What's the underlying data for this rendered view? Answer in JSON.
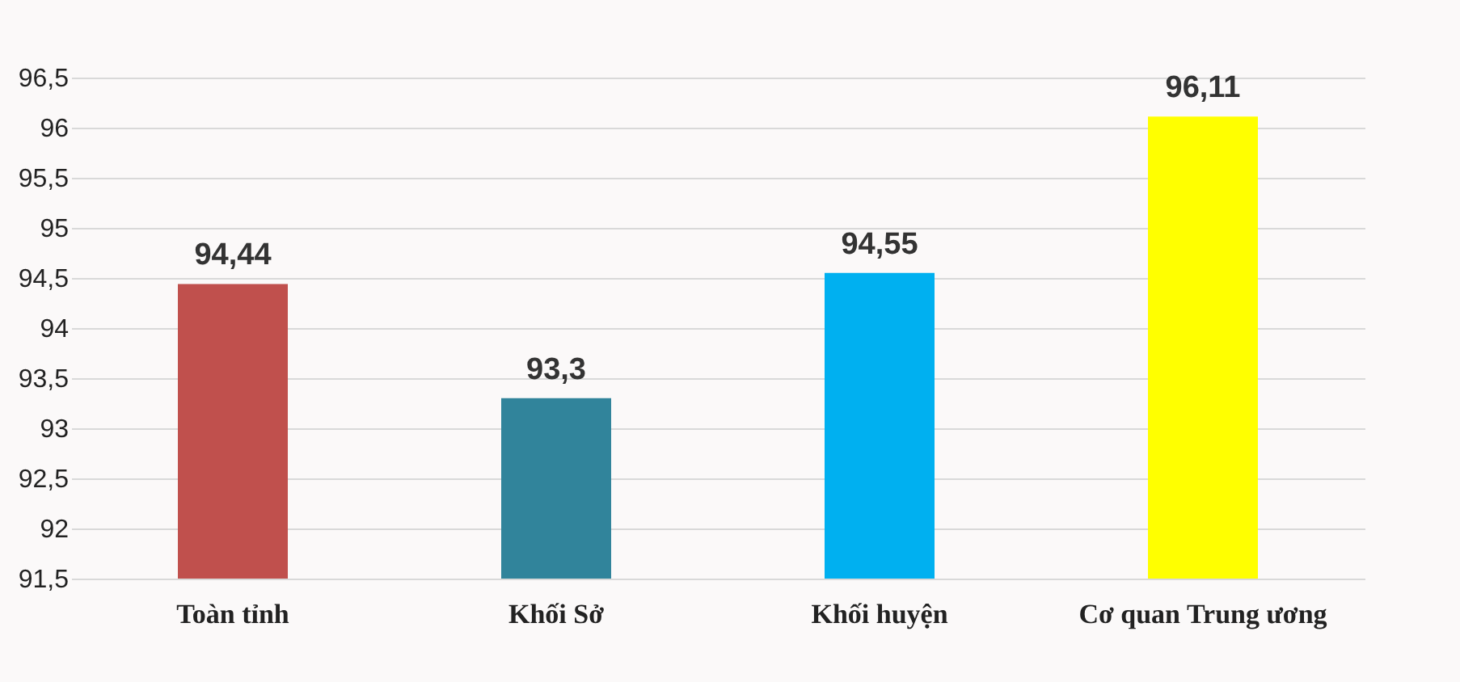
{
  "chart_data": {
    "type": "bar",
    "categories": [
      "Toàn tỉnh",
      "Khối Sở",
      "Khối huyện",
      "Cơ quan Trung ương"
    ],
    "values": [
      94.44,
      93.3,
      94.55,
      96.11
    ],
    "colors": [
      "#c0504d",
      "#31849b",
      "#00b0f0",
      "#ffff00"
    ],
    "value_labels": [
      "94,44",
      "93,3",
      "94,55",
      "96,11"
    ],
    "ylim": [
      91.5,
      96.5
    ],
    "yticks": [
      {
        "value": 91.5,
        "label": "91,5"
      },
      {
        "value": 92,
        "label": "92"
      },
      {
        "value": 92.5,
        "label": "92,5"
      },
      {
        "value": 93,
        "label": "93"
      },
      {
        "value": 93.5,
        "label": "93,5"
      },
      {
        "value": 94,
        "label": "94"
      },
      {
        "value": 94.5,
        "label": "94,5"
      },
      {
        "value": 95,
        "label": "95"
      },
      {
        "value": 95.5,
        "label": "95,5"
      },
      {
        "value": 96,
        "label": "96"
      },
      {
        "value": 96.5,
        "label": "96,5"
      }
    ],
    "grid": true
  }
}
